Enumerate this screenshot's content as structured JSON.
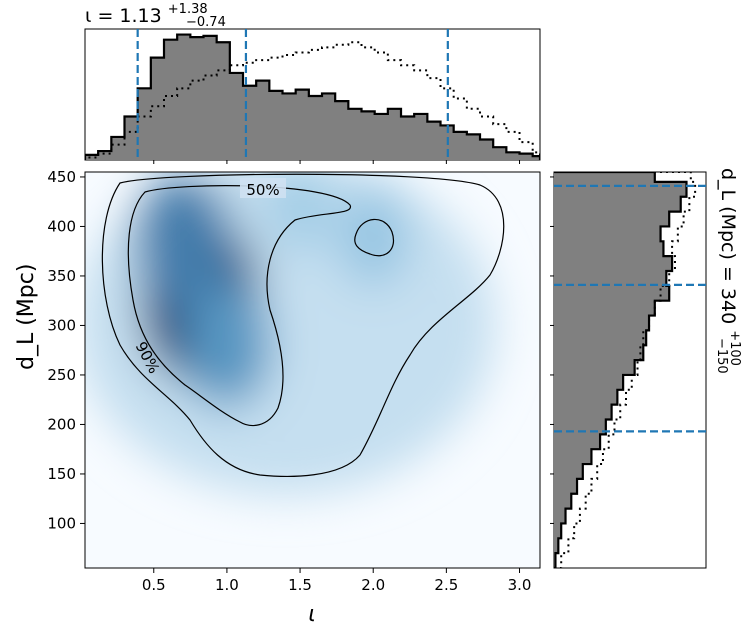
{
  "chart_data": {
    "type": "corner",
    "panels": [
      {
        "name": "marginal-iota",
        "type": "histogram-step",
        "title": {
          "base": "ι = 1.13",
          "sup": "+1.38",
          "sub": "−0.74"
        },
        "x_range": [
          0.03,
          3.14
        ],
        "quantiles": [
          0.39,
          1.13,
          2.51
        ],
        "series": [
          {
            "style": "filled-grey-solid",
            "bins_x": [
              0.03,
              0.12,
              0.21,
              0.3,
              0.39,
              0.48,
              0.57,
              0.66,
              0.75,
              0.84,
              0.93,
              1.02,
              1.11,
              1.2,
              1.29,
              1.38,
              1.47,
              1.56,
              1.65,
              1.74,
              1.83,
              1.92,
              2.01,
              2.1,
              2.19,
              2.28,
              2.37,
              2.46,
              2.55,
              2.64,
              2.73,
              2.82,
              2.91,
              3.0,
              3.09,
              3.14
            ],
            "values": [
              0.04,
              0.07,
              0.18,
              0.34,
              0.56,
              0.8,
              0.94,
              0.98,
              0.96,
              0.97,
              0.92,
              0.68,
              0.58,
              0.62,
              0.54,
              0.52,
              0.55,
              0.5,
              0.52,
              0.46,
              0.4,
              0.38,
              0.36,
              0.4,
              0.34,
              0.36,
              0.3,
              0.27,
              0.22,
              0.2,
              0.16,
              0.1,
              0.06,
              0.05,
              0.03
            ]
          },
          {
            "style": "dotted-prior",
            "bins_x": [
              0.03,
              0.12,
              0.21,
              0.3,
              0.39,
              0.48,
              0.57,
              0.66,
              0.75,
              0.84,
              0.93,
              1.02,
              1.11,
              1.2,
              1.29,
              1.38,
              1.47,
              1.56,
              1.65,
              1.74,
              1.83,
              1.92,
              2.01,
              2.1,
              2.19,
              2.28,
              2.37,
              2.46,
              2.55,
              2.64,
              2.73,
              2.82,
              2.91,
              3.0,
              3.09,
              3.14
            ],
            "values": [
              0.02,
              0.05,
              0.12,
              0.22,
              0.34,
              0.42,
              0.5,
              0.56,
              0.62,
              0.66,
              0.7,
              0.74,
              0.76,
              0.78,
              0.8,
              0.82,
              0.84,
              0.86,
              0.88,
              0.9,
              0.92,
              0.88,
              0.84,
              0.78,
              0.74,
              0.7,
              0.64,
              0.56,
              0.48,
              0.4,
              0.34,
              0.28,
              0.22,
              0.14,
              0.06
            ]
          }
        ]
      },
      {
        "name": "joint-iota-dl",
        "type": "density-2d",
        "x_range": [
          0.03,
          3.14
        ],
        "y_range": [
          55,
          455
        ],
        "x_ticks": [
          "0.5",
          "1.0",
          "1.5",
          "2.0",
          "2.5",
          "3.0"
        ],
        "y_ticks": [
          "100",
          "150",
          "200",
          "250",
          "300",
          "350",
          "400",
          "450"
        ],
        "xlabel": "ι",
        "ylabel": "d_L (Mpc)",
        "contour_labels": [
          "50%",
          "90%"
        ],
        "peaks": [
          {
            "x": 0.82,
            "y": 325,
            "weight": 1.0
          },
          {
            "x": 0.7,
            "y": 385,
            "weight": 0.7
          },
          {
            "x": 1.0,
            "y": 280,
            "weight": 0.6
          },
          {
            "x": 2.0,
            "y": 390,
            "weight": 0.35
          },
          {
            "x": 1.5,
            "y": 420,
            "weight": 0.3
          }
        ]
      },
      {
        "name": "marginal-dl",
        "type": "histogram-step-horizontal",
        "title": {
          "base": "d_L (Mpc) = 340",
          "sup": "+100",
          "sub": "−150"
        },
        "y_range": [
          55,
          455
        ],
        "quantiles": [
          193,
          341,
          441
        ],
        "series": [
          {
            "style": "filled-grey-solid",
            "bins_y": [
              55,
              70,
              85,
              100,
              115,
              130,
              145,
              160,
              175,
              190,
              205,
              220,
              235,
              250,
              265,
              280,
              295,
              310,
              325,
              340,
              355,
              370,
              385,
              400,
              415,
              430,
              445,
              455
            ],
            "values": [
              0.01,
              0.03,
              0.05,
              0.08,
              0.12,
              0.16,
              0.2,
              0.26,
              0.32,
              0.36,
              0.4,
              0.44,
              0.48,
              0.56,
              0.62,
              0.64,
              0.66,
              0.7,
              0.8,
              0.78,
              0.82,
              0.76,
              0.74,
              0.8,
              0.88,
              0.92,
              0.7
            ]
          },
          {
            "style": "dotted-prior",
            "bins_y": [
              55,
              70,
              85,
              100,
              115,
              130,
              145,
              160,
              175,
              190,
              205,
              220,
              235,
              250,
              265,
              280,
              295,
              310,
              325,
              340,
              355,
              370,
              385,
              400,
              415,
              430,
              445,
              455
            ],
            "values": [
              0.05,
              0.1,
              0.14,
              0.18,
              0.22,
              0.26,
              0.3,
              0.34,
              0.38,
              0.42,
              0.46,
              0.5,
              0.54,
              0.58,
              0.6,
              0.62,
              0.66,
              0.7,
              0.74,
              0.8,
              0.84,
              0.82,
              0.86,
              0.9,
              0.94,
              0.98,
              0.95
            ]
          }
        ]
      }
    ],
    "colors": {
      "quantile_line": "#1f77b4",
      "hist_fill": "#808080",
      "density_low": "#f7fbff",
      "density_high": "#08306b",
      "contour": "#000000"
    }
  }
}
